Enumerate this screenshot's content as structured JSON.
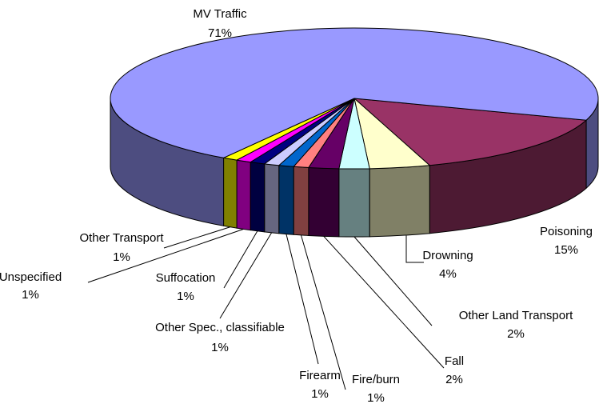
{
  "chart_data": {
    "type": "pie3d",
    "categories": [
      "MV Traffic",
      "Poisoning",
      "Drowning",
      "Other Land Transport",
      "Fall",
      "Fire/burn",
      "Firearm",
      "Other Spec., classifiable",
      "Suffocation",
      "Unspecified",
      "Other Transport"
    ],
    "values": [
      71,
      15,
      4,
      2,
      2,
      1,
      1,
      1,
      1,
      1,
      1
    ],
    "value_labels": [
      "71%",
      "15%",
      "4%",
      "2%",
      "2%",
      "1%",
      "1%",
      "1%",
      "1%",
      "1%",
      "1%"
    ],
    "colors": [
      "#9999ff",
      "#993366",
      "#ffffcc",
      "#ccffff",
      "#660066",
      "#ff8080",
      "#0066cc",
      "#ccccff",
      "#000080",
      "#ff00ff",
      "#ffff00"
    ]
  }
}
